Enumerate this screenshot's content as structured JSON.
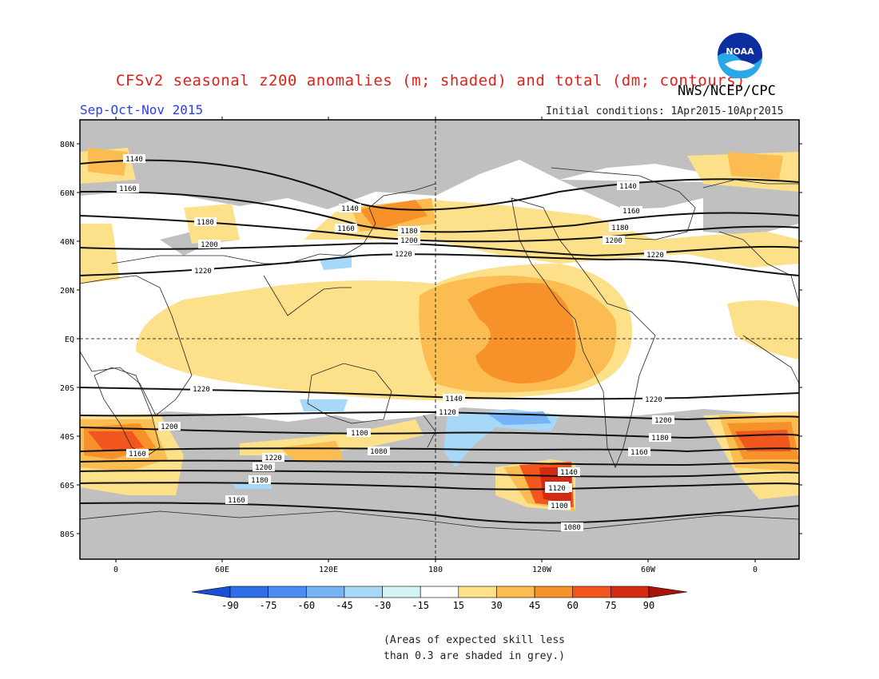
{
  "header": {
    "title": "CFSv2 seasonal z200 anomalies (m; shaded) and total (dm; contours)",
    "agency": "NWS/NCEP/CPC",
    "season": "Sep-Oct-Nov 2015",
    "initial_conditions": "Initial conditions: 1Apr2015-10Apr2015",
    "logo_text": "NOAA"
  },
  "map": {
    "latitude_labels": [
      "80N",
      "60N",
      "40N",
      "20N",
      "EQ",
      "20S",
      "40S",
      "60S",
      "80S"
    ],
    "longitude_labels": [
      "0",
      "60E",
      "120E",
      "180",
      "120W",
      "60W",
      "0"
    ],
    "contour_labels": [
      "1140",
      "1160",
      "1180",
      "1200",
      "1220",
      "1140",
      "1160",
      "1180",
      "1200",
      "1220",
      "1140",
      "1160",
      "1180",
      "1200",
      "1220",
      "1220",
      "1200",
      "1180",
      "1160",
      "1140",
      "1120",
      "1100",
      "1080",
      "1220",
      "1200",
      "1180",
      "1160",
      "1220",
      "1200",
      "1180",
      "1160",
      "1140",
      "1120",
      "1100",
      "1080"
    ],
    "skill_mask_color": "#c0c0c0"
  },
  "colorbar": {
    "labels": [
      "-90",
      "-75",
      "-60",
      "-45",
      "-30",
      "-15",
      "15",
      "30",
      "45",
      "60",
      "75",
      "90"
    ],
    "colors": [
      "#1a4fd6",
      "#2e6ee8",
      "#4a8cf0",
      "#76b4f5",
      "#a8d8f8",
      "#d4f4f8",
      "#ffffff",
      "#fde08a",
      "#fbbd52",
      "#f7922b",
      "#f0561e",
      "#d42a12",
      "#a81408"
    ]
  },
  "footnote": {
    "line1": "(Areas of expected skill less",
    "line2": "than 0.3 are shaded in grey.)"
  }
}
